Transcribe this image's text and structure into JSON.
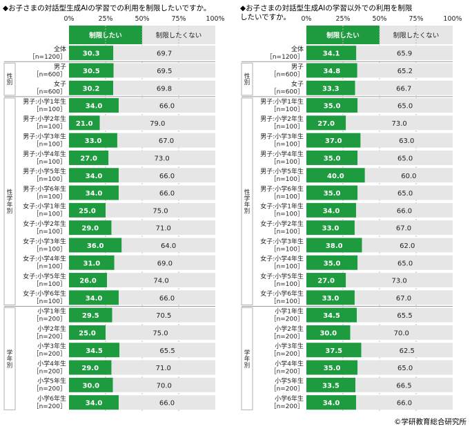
{
  "chart_data": [
    {
      "type": "bar",
      "stacked": true,
      "horizontal": true,
      "title": "◆お子さまの対話型生成AIの学習での利用を制限したいですか。",
      "axis_ticks": [
        "0%",
        "25%",
        "50%",
        "75%",
        "100%"
      ],
      "xlim": [
        0,
        100
      ],
      "legend": [
        "制限したい",
        "制限したくない"
      ],
      "groups": [
        {
          "label": "",
          "rows": [
            0,
            0
          ]
        },
        {
          "label": "性別",
          "rows": [
            1,
            2
          ]
        },
        {
          "label": "性学年別",
          "rows": [
            3,
            14
          ]
        },
        {
          "label": "学年別",
          "rows": [
            15,
            20
          ]
        }
      ],
      "categories": [
        [
          "全体",
          "［n=1200］"
        ],
        [
          "男子",
          "［n=600］"
        ],
        [
          "女子",
          "［n=600］"
        ],
        [
          "男子:小学1年生",
          "［n=100］"
        ],
        [
          "男子:小学2年生",
          "［n=100］"
        ],
        [
          "男子:小学3年生",
          "［n=100］"
        ],
        [
          "男子:小学4年生",
          "［n=100］"
        ],
        [
          "男子:小学5年生",
          "［n=100］"
        ],
        [
          "男子:小学6年生",
          "［n=100］"
        ],
        [
          "女子:小学1年生",
          "［n=100］"
        ],
        [
          "女子:小学2年生",
          "［n=100］"
        ],
        [
          "女子:小学3年生",
          "［n=100］"
        ],
        [
          "女子:小学4年生",
          "［n=100］"
        ],
        [
          "女子:小学5年生",
          "［n=100］"
        ],
        [
          "女子:小学6年生",
          "［n=100］"
        ],
        [
          "小学1年生",
          "［n=200］"
        ],
        [
          "小学2年生",
          "［n=200］"
        ],
        [
          "小学3年生",
          "［n=200］"
        ],
        [
          "小学4年生",
          "［n=200］"
        ],
        [
          "小学5年生",
          "［n=200］"
        ],
        [
          "小学6年生",
          "［n=200］"
        ]
      ],
      "series": [
        {
          "name": "制限したい",
          "color": "#1f9b3f",
          "values": [
            30.3,
            30.5,
            30.2,
            34.0,
            21.0,
            33.0,
            27.0,
            34.0,
            34.0,
            25.0,
            29.0,
            36.0,
            31.0,
            26.0,
            34.0,
            29.5,
            25.0,
            34.5,
            29.0,
            30.0,
            34.0
          ],
          "labels": [
            "30.3",
            "30.5",
            "30.2",
            "34.0",
            "21.0",
            "33.0",
            "27.0",
            "34.0",
            "34.0",
            "25.0",
            "29.0",
            "36.0",
            "31.0",
            "26.0",
            "34.0",
            "29.5",
            "25.0",
            "34.5",
            "29.0",
            "30.0",
            "34.0"
          ]
        },
        {
          "name": "制限したくない",
          "color": "#e6e6e6",
          "values": [
            69.7,
            69.5,
            69.8,
            66.0,
            79.0,
            67.0,
            73.0,
            66.0,
            66.0,
            75.0,
            71.0,
            64.0,
            69.0,
            74.0,
            66.0,
            70.5,
            75.0,
            65.5,
            71.0,
            70.0,
            66.0
          ],
          "labels": [
            "69.7",
            "69.5",
            "69.8",
            "66.0",
            "79.0",
            "67.0",
            "73.0",
            "66.0",
            "66.0",
            "75.0",
            "71.0",
            "64.0",
            "69.0",
            "74.0",
            "66.0",
            "70.5",
            "75.0",
            "65.5",
            "71.0",
            "70.0",
            "66.0"
          ]
        }
      ]
    },
    {
      "type": "bar",
      "stacked": true,
      "horizontal": true,
      "title": "◆お子さまの対話型生成AIの学習以外での利用を制限\nしたいですか。",
      "axis_ticks": [
        "0%",
        "25%",
        "50%",
        "75%",
        "100%"
      ],
      "xlim": [
        0,
        100
      ],
      "legend": [
        "制限したい",
        "制限したくない"
      ],
      "groups": [
        {
          "label": "",
          "rows": [
            0,
            0
          ]
        },
        {
          "label": "性別",
          "rows": [
            1,
            2
          ]
        },
        {
          "label": "性学年別",
          "rows": [
            3,
            14
          ]
        },
        {
          "label": "学年別",
          "rows": [
            15,
            20
          ]
        }
      ],
      "categories": [
        [
          "全体",
          "［n=1200］"
        ],
        [
          "男子",
          "［n=600］"
        ],
        [
          "女子",
          "［n=600］"
        ],
        [
          "男子:小学1年生",
          "［n=100］"
        ],
        [
          "男子:小学2年生",
          "［n=100］"
        ],
        [
          "男子:小学3年生",
          "［n=100］"
        ],
        [
          "男子:小学4年生",
          "［n=100］"
        ],
        [
          "男子:小学5年生",
          "［n=100］"
        ],
        [
          "男子:小学6年生",
          "［n=100］"
        ],
        [
          "女子:小学1年生",
          "［n=100］"
        ],
        [
          "女子:小学2年生",
          "［n=100］"
        ],
        [
          "女子:小学3年生",
          "［n=100］"
        ],
        [
          "女子:小学4年生",
          "［n=100］"
        ],
        [
          "女子:小学5年生",
          "［n=100］"
        ],
        [
          "女子:小学6年生",
          "［n=100］"
        ],
        [
          "小学1年生",
          "［n=200］"
        ],
        [
          "小学2年生",
          "［n=200］"
        ],
        [
          "小学3年生",
          "［n=200］"
        ],
        [
          "小学4年生",
          "［n=200］"
        ],
        [
          "小学5年生",
          "［n=200］"
        ],
        [
          "小学6年生",
          "［n=200］"
        ]
      ],
      "series": [
        {
          "name": "制限したい",
          "color": "#1f9b3f",
          "values": [
            34.1,
            34.8,
            33.3,
            35.0,
            27.0,
            37.0,
            35.0,
            40.0,
            35.0,
            34.0,
            33.0,
            38.0,
            35.0,
            27.0,
            33.0,
            34.5,
            30.0,
            37.5,
            35.0,
            33.5,
            34.0
          ],
          "labels": [
            "34.1",
            "34.8",
            "33.3",
            "35.0",
            "27.0",
            "37.0",
            "35.0",
            "40.0",
            "35.0",
            "34.0",
            "33.0",
            "38.0",
            "35.0",
            "27.0",
            "33.0",
            "34.5",
            "30.0",
            "37.5",
            "35.0",
            "33.5",
            "34.0"
          ]
        },
        {
          "name": "制限したくない",
          "color": "#e6e6e6",
          "values": [
            65.9,
            65.2,
            66.7,
            65.0,
            73.0,
            63.0,
            65.0,
            60.0,
            65.0,
            66.0,
            67.0,
            62.0,
            65.0,
            73.0,
            67.0,
            65.5,
            70.0,
            62.5,
            65.0,
            66.5,
            66.0
          ],
          "labels": [
            "65.9",
            "65.2",
            "66.7",
            "65.0",
            "73.0",
            "63.0",
            "65.0",
            "60.0",
            "65.0",
            "66.0",
            "67.0",
            "62.0",
            "65.0",
            "73.0",
            "67.0",
            "65.5",
            "70.0",
            "62.5",
            "65.0",
            "66.5",
            "66.0"
          ]
        }
      ]
    }
  ],
  "credit": "©学研教育総合研究所"
}
